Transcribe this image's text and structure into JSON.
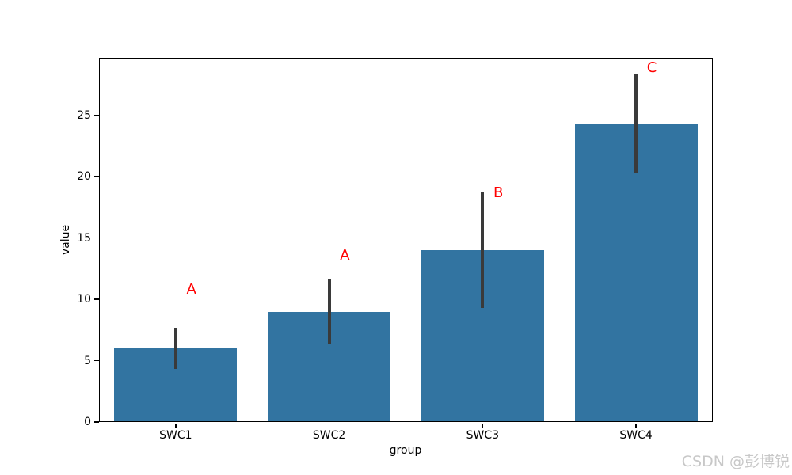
{
  "chart_data": {
    "type": "bar",
    "title": "",
    "xlabel": "group",
    "ylabel": "value",
    "categories": [
      "SWC1",
      "SWC2",
      "SWC3",
      "SWC4"
    ],
    "values": [
      6.1,
      9.0,
      14.0,
      24.3
    ],
    "error_bars": {
      "low": [
        4.3,
        6.3,
        9.3,
        20.3
      ],
      "high": [
        7.7,
        11.7,
        18.7,
        28.4
      ]
    },
    "annotations": [
      {
        "label": "A",
        "x": 0.07,
        "y": 10.3
      },
      {
        "label": "A",
        "x": 1.07,
        "y": 13.1
      },
      {
        "label": "B",
        "x": 2.07,
        "y": 18.2
      },
      {
        "label": "C",
        "x": 3.07,
        "y": 28.4
      }
    ],
    "yticks": [
      0,
      5,
      10,
      15,
      20,
      25
    ],
    "ylim": [
      0,
      29.7
    ],
    "grid": false,
    "legend": null,
    "colors": {
      "bar": "#3274a1",
      "error_bar": "#3a3a3a",
      "annotation": "#ff0000",
      "axis": "#000000"
    }
  },
  "watermark": {
    "text": "CSDN @彭博锐",
    "color": "#c8c8c8"
  }
}
